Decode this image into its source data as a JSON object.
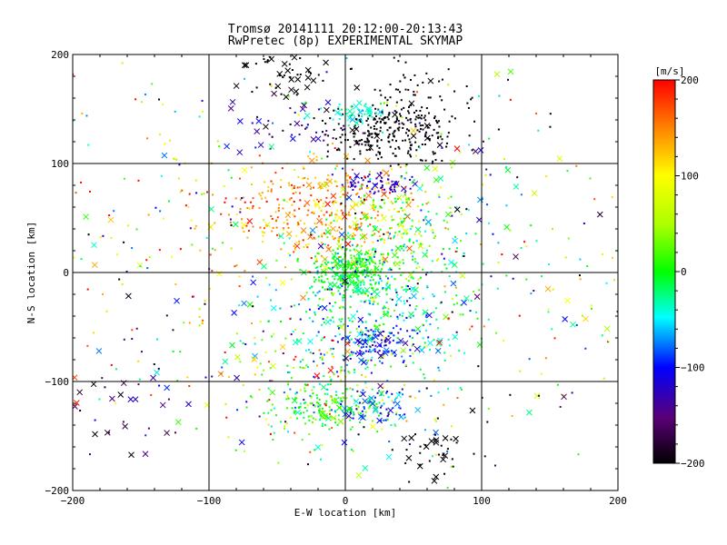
{
  "chart_data": {
    "type": "scatter",
    "title": "Tromsø 20141111 20:12:00-20:13:43",
    "subtitle": "RwPretec (8p) EXPERIMENTAL SKYMAP",
    "xlabel": "E-W location [km]",
    "ylabel": "N-S location [km]",
    "xlim": [
      -200,
      200
    ],
    "ylim": [
      -200,
      200
    ],
    "x_ticks": [
      "−200",
      "−100",
      "0",
      "100",
      "200"
    ],
    "y_ticks": [
      "−200",
      "−100",
      "0",
      "100",
      "200"
    ],
    "grid": true,
    "grid_lines_x": [
      -100,
      0,
      100
    ],
    "grid_lines_y": [
      -100,
      0,
      100
    ],
    "colorbar": {
      "label": "[m/s]",
      "range": [
        -200,
        200
      ],
      "ticks": [
        "200",
        "100",
        "0",
        "−100",
        "−200"
      ],
      "colormap": "rainbow (black → purple → blue → cyan → green → yellow → red)"
    },
    "markers": [
      "x",
      "."
    ],
    "clusters": [
      {
        "name": "black dots north-east",
        "x": 30,
        "y": 130,
        "value": -200
      },
      {
        "name": "black crosses north",
        "x": -50,
        "y": 180,
        "value": -200
      },
      {
        "name": "blue cluster",
        "x": 25,
        "y": 80,
        "value": -120
      },
      {
        "name": "red/orange band",
        "x": -10,
        "y": 50,
        "value": 150
      },
      {
        "name": "green core",
        "x": 5,
        "y": 0,
        "value": 0
      },
      {
        "name": "cyan band",
        "x": 20,
        "y": -50,
        "value": -40
      },
      {
        "name": "blue patch",
        "x": 25,
        "y": -65,
        "value": -100
      },
      {
        "name": "green south",
        "x": -20,
        "y": -125,
        "value": 10
      },
      {
        "name": "blue crosses south",
        "x": 20,
        "y": -125,
        "value": -80
      },
      {
        "name": "black crosses south-east",
        "x": 65,
        "y": -160,
        "value": -200
      },
      {
        "name": "purple crosses south-west",
        "x": -160,
        "y": -130,
        "value": -150
      }
    ]
  }
}
